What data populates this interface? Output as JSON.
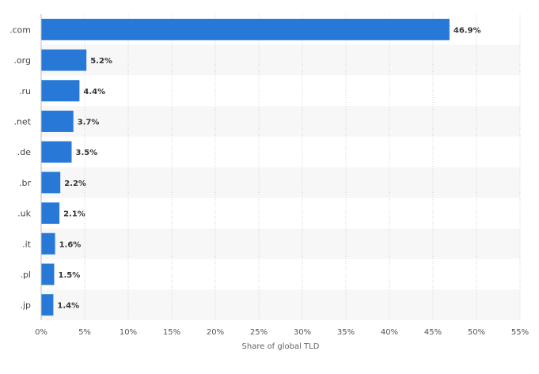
{
  "chart_data": {
    "type": "bar",
    "orientation": "horizontal",
    "categories": [
      ".com",
      ".org",
      ".ru",
      ".net",
      ".de",
      ".br",
      ".uk",
      ".it",
      ".pl",
      ".jp"
    ],
    "values": [
      46.9,
      5.2,
      4.4,
      3.7,
      3.5,
      2.2,
      2.1,
      1.6,
      1.5,
      1.4
    ],
    "data_labels": [
      "46.9%",
      "5.2%",
      "4.4%",
      "3.7%",
      "3.5%",
      "2.2%",
      "2.1%",
      "1.6%",
      "1.5%",
      "1.4%"
    ],
    "xlabel": "Share of global TLD",
    "xlim": [
      0,
      55
    ],
    "xticks": [
      0,
      5,
      10,
      15,
      20,
      25,
      30,
      35,
      40,
      45,
      50,
      55
    ],
    "xtick_labels": [
      "0%",
      "5%",
      "10%",
      "15%",
      "20%",
      "25%",
      "30%",
      "35%",
      "40%",
      "45%",
      "50%",
      "55%"
    ],
    "grid": true,
    "bar_color": "#2878d8",
    "band_color": "#f7f7f7"
  }
}
